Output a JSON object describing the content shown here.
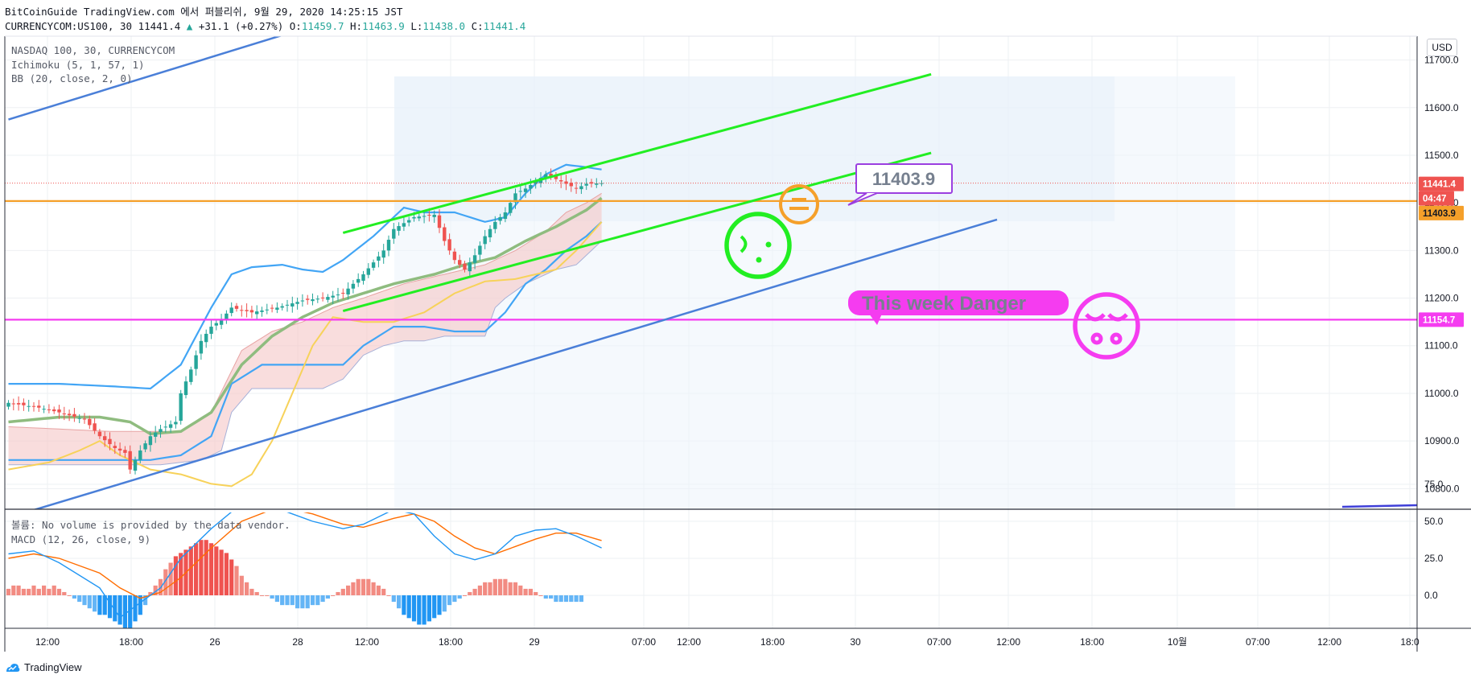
{
  "header": {
    "line1": "BitCoinGuide TradingView.com 에서 퍼블리쉬, 9월 29, 2020 14:25:15 JST",
    "symbol": "CURRENCYCOM:US100, 30",
    "last": "11441.4",
    "change": "+31.1 (+0.27%)",
    "o_label": "O:",
    "o": "11459.7",
    "h_label": "H:",
    "h": "11463.9",
    "l_label": "L:",
    "l": "11438.0",
    "c_label": "C:",
    "c": "11441.4"
  },
  "legend": {
    "symbol": "NASDAQ 100, 30, CURRENCYCOM",
    "ichimoku": "Ichimoku (5, 1, 57, 1)",
    "bb": "BB (20, close, 2, 0)",
    "volume": "볼륨: No volume is provided by the data vendor.",
    "macd": "MACD (12, 26, close, 9)"
  },
  "currency": "USD",
  "price_tags": {
    "last": "11441.4",
    "countdown": "04:47",
    "orange": "11403.9",
    "magenta": "11154.7"
  },
  "annotations": {
    "callout_price": "11403.9",
    "danger_text": "This week Danger"
  },
  "footer": {
    "brand": "TradingView"
  },
  "colors": {
    "up": "#26a69a",
    "down": "#ef5350",
    "bb": "#42a5f5",
    "ichimoku_base": "#8fbc7f",
    "ichimoku_lag": "#f7d25a",
    "channel_green": "#22ee22",
    "trend_blue": "#4a7fd8",
    "orange_level": "#f5a02a",
    "magenta_level": "#f53cf0",
    "macd_line": "#2196f3",
    "signal_line": "#ff6d00"
  },
  "chart_data": [
    {
      "type": "candlestick",
      "title": "NASDAQ 100, 30, CURRENCYCOM",
      "ylabel": "USD",
      "ylim": [
        10760,
        11750
      ],
      "yticks": [
        "11700.0",
        "11600.0",
        "11500.0",
        "11400.0",
        "11300.0",
        "11200.0",
        "11100.0",
        "11000.0",
        "10900.0",
        "10800.0"
      ],
      "xticks": [
        "12:00",
        "18:00",
        "26",
        "28",
        "12:00",
        "18:00",
        "29",
        "07:00",
        "12:00",
        "18:00",
        "30",
        "07:00",
        "12:00",
        "18:00",
        "10월",
        "07:00",
        "12:00",
        "18:0"
      ],
      "close_path": [
        [
          0,
          10980
        ],
        [
          6,
          10970
        ],
        [
          10,
          10960
        ],
        [
          15,
          10945
        ],
        [
          18,
          10910
        ],
        [
          21,
          10885
        ],
        [
          23,
          10875
        ],
        [
          24,
          10840
        ],
        [
          26,
          10880
        ],
        [
          28,
          10910
        ],
        [
          30,
          10925
        ],
        [
          33,
          10940
        ],
        [
          34,
          11000
        ],
        [
          36,
          11050
        ],
        [
          38,
          11110
        ],
        [
          40,
          11140
        ],
        [
          42,
          11155
        ],
        [
          44,
          11180
        ],
        [
          48,
          11170
        ],
        [
          53,
          11180
        ],
        [
          58,
          11195
        ],
        [
          62,
          11200
        ],
        [
          66,
          11210
        ],
        [
          70,
          11250
        ],
        [
          74,
          11300
        ],
        [
          76,
          11345
        ],
        [
          80,
          11370
        ],
        [
          84,
          11375
        ],
        [
          86,
          11320
        ],
        [
          88,
          11280
        ],
        [
          90,
          11260
        ],
        [
          92,
          11290
        ],
        [
          94,
          11330
        ],
        [
          96,
          11360
        ],
        [
          98,
          11380
        ],
        [
          100,
          11420
        ],
        [
          102,
          11430
        ],
        [
          104,
          11445
        ],
        [
          106,
          11460
        ],
        [
          108,
          11450
        ],
        [
          110,
          11440
        ],
        [
          112,
          11430
        ],
        [
          114,
          11440
        ],
        [
          117,
          11441.4
        ]
      ],
      "bb_upper_path": [
        [
          0,
          11020
        ],
        [
          10,
          11020
        ],
        [
          20,
          11015
        ],
        [
          28,
          11010
        ],
        [
          34,
          11060
        ],
        [
          40,
          11180
        ],
        [
          44,
          11250
        ],
        [
          48,
          11265
        ],
        [
          54,
          11270
        ],
        [
          58,
          11260
        ],
        [
          62,
          11255
        ],
        [
          66,
          11280
        ],
        [
          72,
          11330
        ],
        [
          78,
          11390
        ],
        [
          82,
          11380
        ],
        [
          88,
          11380
        ],
        [
          94,
          11360
        ],
        [
          98,
          11370
        ],
        [
          102,
          11420
        ],
        [
          106,
          11460
        ],
        [
          110,
          11480
        ],
        [
          114,
          11475
        ],
        [
          117,
          11470
        ]
      ],
      "bb_lower_path": [
        [
          0,
          10860
        ],
        [
          10,
          10860
        ],
        [
          20,
          10860
        ],
        [
          28,
          10860
        ],
        [
          34,
          10870
        ],
        [
          40,
          10910
        ],
        [
          44,
          11020
        ],
        [
          50,
          11060
        ],
        [
          58,
          11060
        ],
        [
          66,
          11060
        ],
        [
          70,
          11100
        ],
        [
          76,
          11140
        ],
        [
          82,
          11140
        ],
        [
          88,
          11130
        ],
        [
          94,
          11130
        ],
        [
          98,
          11170
        ],
        [
          102,
          11230
        ],
        [
          106,
          11260
        ],
        [
          110,
          11300
        ],
        [
          114,
          11330
        ],
        [
          117,
          11360
        ]
      ],
      "kijun_path": [
        [
          0,
          10940
        ],
        [
          10,
          10950
        ],
        [
          18,
          10950
        ],
        [
          24,
          10940
        ],
        [
          28,
          10915
        ],
        [
          34,
          10920
        ],
        [
          40,
          10960
        ],
        [
          46,
          11060
        ],
        [
          52,
          11120
        ],
        [
          58,
          11160
        ],
        [
          64,
          11190
        ],
        [
          70,
          11210
        ],
        [
          76,
          11230
        ],
        [
          84,
          11250
        ],
        [
          90,
          11270
        ],
        [
          96,
          11285
        ],
        [
          102,
          11320
        ],
        [
          108,
          11350
        ],
        [
          114,
          11385
        ],
        [
          117,
          11410
        ]
      ],
      "chikou_path": [
        [
          0,
          10840
        ],
        [
          8,
          10855
        ],
        [
          14,
          10880
        ],
        [
          18,
          10900
        ],
        [
          22,
          10870
        ],
        [
          28,
          10840
        ],
        [
          34,
          10830
        ],
        [
          40,
          10810
        ],
        [
          44,
          10805
        ],
        [
          48,
          10830
        ],
        [
          52,
          10900
        ],
        [
          56,
          11000
        ],
        [
          60,
          11100
        ],
        [
          64,
          11160
        ],
        [
          70,
          11150
        ],
        [
          76,
          11150
        ],
        [
          82,
          11170
        ],
        [
          88,
          11210
        ],
        [
          94,
          11235
        ],
        [
          100,
          11240
        ],
        [
          104,
          11250
        ],
        [
          108,
          11260
        ],
        [
          112,
          11300
        ],
        [
          117,
          11360
        ]
      ],
      "cloud_upper_path": [
        [
          0,
          10930
        ],
        [
          20,
          10920
        ],
        [
          30,
          10920
        ],
        [
          34,
          10920
        ],
        [
          40,
          10960
        ],
        [
          46,
          11090
        ],
        [
          52,
          11130
        ],
        [
          58,
          11150
        ],
        [
          64,
          11180
        ],
        [
          70,
          11200
        ],
        [
          78,
          11230
        ],
        [
          86,
          11250
        ],
        [
          94,
          11270
        ],
        [
          100,
          11300
        ],
        [
          106,
          11340
        ],
        [
          110,
          11380
        ],
        [
          114,
          11400
        ],
        [
          117,
          11420
        ]
      ],
      "cloud_lower_path": [
        [
          0,
          10850
        ],
        [
          20,
          10850
        ],
        [
          30,
          10850
        ],
        [
          38,
          10860
        ],
        [
          42,
          10880
        ],
        [
          44,
          10960
        ],
        [
          48,
          11010
        ],
        [
          52,
          11010
        ],
        [
          58,
          11010
        ],
        [
          62,
          11010
        ],
        [
          66,
          11030
        ],
        [
          70,
          11080
        ],
        [
          74,
          11100
        ],
        [
          78,
          11110
        ],
        [
          82,
          11110
        ],
        [
          86,
          11120
        ],
        [
          90,
          11120
        ],
        [
          94,
          11120
        ],
        [
          96,
          11180
        ],
        [
          98,
          11200
        ],
        [
          102,
          11230
        ],
        [
          108,
          11260
        ],
        [
          112,
          11270
        ],
        [
          117,
          11320
        ]
      ],
      "levels": {
        "orange": 11403.9,
        "magenta": 11154.7
      },
      "drawings": {
        "green_upper": [
          [
            66,
            11337
          ],
          [
            182,
            11670
          ]
        ],
        "green_lower": [
          [
            66,
            11173
          ],
          [
            182,
            11505
          ]
        ],
        "blue_upper": [
          [
            0,
            11575
          ],
          [
            61,
            11775
          ]
        ],
        "blue_lower": [
          [
            5,
            10755
          ],
          [
            195,
            11365
          ]
        ]
      }
    },
    {
      "type": "line",
      "title": "MACD (12, 26, close, 9)",
      "ylim": [
        -25,
        75
      ],
      "yticks": [
        "75.0",
        "50.0",
        "25.0",
        "0.0"
      ],
      "series": [
        {
          "name": "MACD",
          "values": [
            [
              0,
              28
            ],
            [
              5,
              30
            ],
            [
              10,
              22
            ],
            [
              18,
              5
            ],
            [
              22,
              -15
            ],
            [
              26,
              -5
            ],
            [
              30,
              5
            ],
            [
              34,
              25
            ],
            [
              40,
              45
            ],
            [
              46,
              62
            ],
            [
              52,
              60
            ],
            [
              56,
              55
            ],
            [
              60,
              50
            ],
            [
              66,
              45
            ],
            [
              70,
              48
            ],
            [
              76,
              58
            ],
            [
              80,
              55
            ],
            [
              84,
              40
            ],
            [
              88,
              28
            ],
            [
              92,
              24
            ],
            [
              96,
              28
            ],
            [
              100,
              40
            ],
            [
              104,
              44
            ],
            [
              108,
              45
            ],
            [
              112,
              40
            ],
            [
              117,
              32
            ]
          ]
        },
        {
          "name": "Signal",
          "values": [
            [
              0,
              25
            ],
            [
              5,
              28
            ],
            [
              10,
              25
            ],
            [
              18,
              15
            ],
            [
              22,
              5
            ],
            [
              26,
              -2
            ],
            [
              30,
              2
            ],
            [
              34,
              12
            ],
            [
              40,
              32
            ],
            [
              46,
              50
            ],
            [
              52,
              58
            ],
            [
              56,
              58
            ],
            [
              60,
              55
            ],
            [
              66,
              48
            ],
            [
              70,
              46
            ],
            [
              76,
              52
            ],
            [
              80,
              55
            ],
            [
              84,
              50
            ],
            [
              88,
              40
            ],
            [
              92,
              32
            ],
            [
              96,
              28
            ],
            [
              100,
              33
            ],
            [
              104,
              38
            ],
            [
              108,
              42
            ],
            [
              112,
              42
            ],
            [
              117,
              37
            ]
          ]
        }
      ],
      "histogram": [
        2,
        3,
        3,
        2,
        2,
        3,
        2,
        3,
        2,
        3,
        2,
        1,
        0,
        -1,
        -2,
        -3,
        -4,
        -5,
        -6,
        -6,
        -7,
        -8,
        -9,
        -10,
        -10,
        -8,
        -6,
        -3,
        1,
        3,
        5,
        8,
        10,
        12,
        13,
        14,
        15,
        16,
        17,
        17,
        16,
        15,
        14,
        13,
        11,
        9,
        6,
        4,
        2,
        1,
        0,
        0,
        -1,
        -2,
        -3,
        -3,
        -3,
        -4,
        -4,
        -4,
        -3,
        -3,
        -2,
        -1,
        0,
        1,
        2,
        3,
        4,
        5,
        5,
        5,
        4,
        3,
        2,
        0,
        -2,
        -4,
        -6,
        -7,
        -8,
        -9,
        -9,
        -8,
        -7,
        -6,
        -5,
        -3,
        -2,
        -1,
        0,
        1,
        2,
        3,
        4,
        4,
        5,
        5,
        5,
        4,
        4,
        3,
        2,
        2,
        1,
        0,
        -1,
        -1,
        -2,
        -2,
        -2,
        -2,
        -2,
        -2
      ]
    }
  ]
}
